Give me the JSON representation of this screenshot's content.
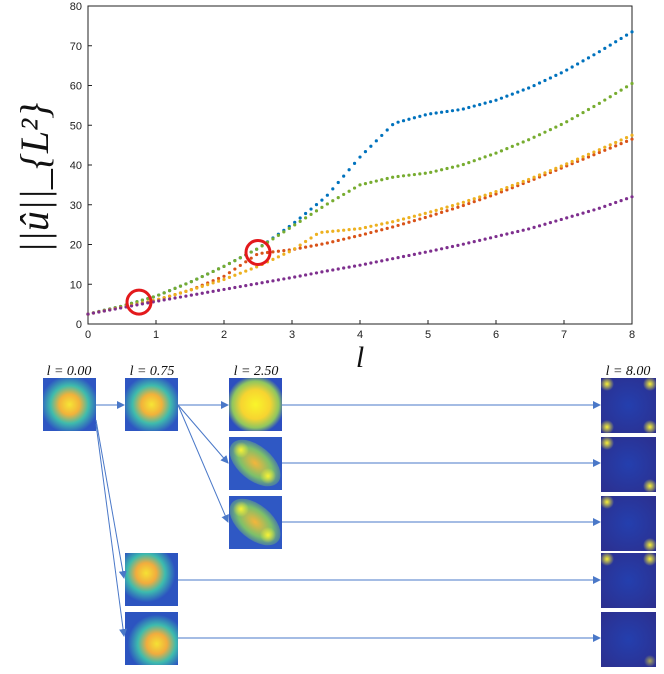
{
  "chart_data": {
    "type": "line",
    "ylabel": "||û||_{L²}",
    "xlabel": "l",
    "xlim": [
      0,
      8
    ],
    "ylim": [
      0,
      80
    ],
    "x_ticks": [
      0,
      1,
      2,
      3,
      4,
      5,
      6,
      7,
      8
    ],
    "y_ticks": [
      0,
      10,
      20,
      30,
      40,
      50,
      60,
      70,
      80
    ],
    "grid": false,
    "series": [
      {
        "color": "#0072BD",
        "points": [
          [
            0,
            2.5
          ],
          [
            0.5,
            4.5
          ],
          [
            1,
            7
          ],
          [
            1.5,
            10.5
          ],
          [
            2,
            14.5
          ],
          [
            2.5,
            19
          ],
          [
            3,
            25
          ],
          [
            3.5,
            32
          ],
          [
            4,
            42
          ],
          [
            4.5,
            50.5
          ],
          [
            5,
            52.8
          ],
          [
            5.5,
            54
          ],
          [
            6,
            56.3
          ],
          [
            6.5,
            59.5
          ],
          [
            7,
            63.5
          ],
          [
            7.5,
            68.3
          ],
          [
            8,
            73.5
          ]
        ]
      },
      {
        "color": "#77AC30",
        "points": [
          [
            0,
            2.5
          ],
          [
            0.5,
            4.5
          ],
          [
            1,
            7
          ],
          [
            1.5,
            10.5
          ],
          [
            2,
            14.5
          ],
          [
            2.5,
            19
          ],
          [
            3,
            24.5
          ],
          [
            3.5,
            30
          ],
          [
            4,
            35
          ],
          [
            4.5,
            37
          ],
          [
            5,
            38
          ],
          [
            5.5,
            40
          ],
          [
            6,
            43
          ],
          [
            6.5,
            46.5
          ],
          [
            7,
            50.5
          ],
          [
            7.5,
            55.3
          ],
          [
            8,
            60.5
          ]
        ]
      },
      {
        "color": "#D95319",
        "points": [
          [
            0,
            2.5
          ],
          [
            0.5,
            4.2
          ],
          [
            1,
            6
          ],
          [
            1.5,
            8.5
          ],
          [
            2,
            12
          ],
          [
            2.5,
            17.7
          ],
          [
            3,
            18.7
          ],
          [
            3.5,
            20.3
          ],
          [
            4,
            22.3
          ],
          [
            4.5,
            24.5
          ],
          [
            5,
            27
          ],
          [
            5.5,
            29.7
          ],
          [
            6,
            32.7
          ],
          [
            6.5,
            36
          ],
          [
            7,
            39.5
          ],
          [
            7.5,
            43
          ],
          [
            8,
            46.5
          ]
        ]
      },
      {
        "color": "#EDB120",
        "points": [
          [
            0,
            2.5
          ],
          [
            0.5,
            4.2
          ],
          [
            1,
            6
          ],
          [
            1.5,
            8.5
          ],
          [
            2,
            11.2
          ],
          [
            2.5,
            14.5
          ],
          [
            3,
            18.5
          ],
          [
            3.4,
            23
          ],
          [
            4,
            24
          ],
          [
            4.5,
            25.8
          ],
          [
            5,
            28
          ],
          [
            5.5,
            30.5
          ],
          [
            6,
            33.3
          ],
          [
            6.5,
            36.5
          ],
          [
            7,
            40
          ],
          [
            7.5,
            43.7
          ],
          [
            8,
            47.5
          ]
        ]
      },
      {
        "color": "#7E2F8E",
        "points": [
          [
            0,
            2.5
          ],
          [
            0.5,
            4.1
          ],
          [
            1,
            5.7
          ],
          [
            1.5,
            7.2
          ],
          [
            2,
            8.7
          ],
          [
            2.5,
            10.2
          ],
          [
            3,
            11.7
          ],
          [
            3.5,
            13.3
          ],
          [
            4,
            14.8
          ],
          [
            4.5,
            16.5
          ],
          [
            5,
            18.2
          ],
          [
            5.5,
            20
          ],
          [
            6,
            22
          ],
          [
            6.5,
            24
          ],
          [
            7,
            26.5
          ],
          [
            7.5,
            29
          ],
          [
            8,
            32
          ]
        ]
      }
    ],
    "highlight_circles": [
      {
        "x": 0.75,
        "y": 5.5,
        "color": "#e3191c"
      },
      {
        "x": 2.5,
        "y": 18,
        "color": "#e3191c"
      }
    ]
  },
  "snapshots": {
    "col_labels": [
      "l = 0.00",
      "l = 0.75",
      "l = 2.50",
      "l = 8.00"
    ],
    "arrow_color": "#4a78c8"
  }
}
